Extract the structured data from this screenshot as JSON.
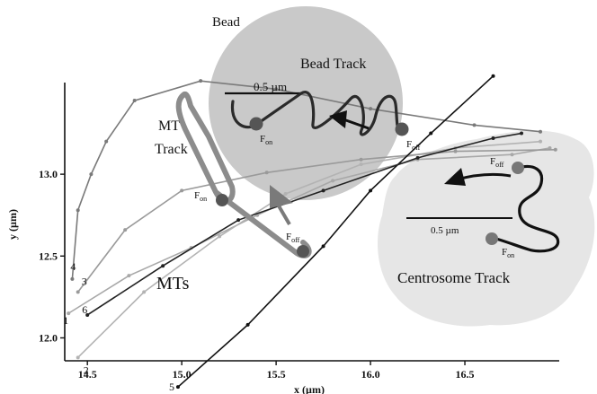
{
  "chart_data": {
    "type": "line",
    "xlabel": "x (µm)",
    "ylabel": "y (µm)",
    "xlim": [
      14.38,
      17.0
    ],
    "ylim": [
      11.86,
      13.56
    ],
    "x_ticks": [
      "14.5",
      "15.0",
      "15.5",
      "16.0",
      "16.5"
    ],
    "x_tick_values": [
      14.5,
      15.0,
      15.5,
      16.0,
      16.5
    ],
    "y_ticks": [
      "12.0",
      "12.5",
      "13.0"
    ],
    "y_tick_values": [
      12.0,
      12.5,
      13.0
    ],
    "series": [
      {
        "name": "1",
        "color": "#a8a8a8",
        "points": [
          [
            14.4,
            12.15
          ],
          [
            14.72,
            12.38
          ],
          [
            15.05,
            12.55
          ],
          [
            15.4,
            12.75
          ],
          [
            15.8,
            12.96
          ],
          [
            16.25,
            13.09
          ],
          [
            16.75,
            13.12
          ],
          [
            16.95,
            13.16
          ]
        ]
      },
      {
        "name": "2",
        "color": "#b3b3b3",
        "points": [
          [
            14.45,
            11.88
          ],
          [
            14.8,
            12.28
          ],
          [
            15.2,
            12.62
          ],
          [
            15.55,
            12.88
          ],
          [
            15.95,
            13.06
          ],
          [
            16.45,
            13.16
          ],
          [
            16.9,
            13.2
          ]
        ]
      },
      {
        "name": "3",
        "color": "#9a9a9a",
        "points": [
          [
            14.45,
            12.28
          ],
          [
            14.7,
            12.66
          ],
          [
            15.0,
            12.9
          ],
          [
            15.45,
            13.01
          ],
          [
            15.95,
            13.09
          ],
          [
            16.45,
            13.14
          ],
          [
            16.98,
            13.15
          ]
        ]
      },
      {
        "name": "4",
        "color": "#7a7a7a",
        "points": [
          [
            14.42,
            12.36
          ],
          [
            14.45,
            12.78
          ],
          [
            14.52,
            13.0
          ],
          [
            14.6,
            13.2
          ],
          [
            14.75,
            13.45
          ],
          [
            15.1,
            13.57
          ],
          [
            15.5,
            13.52
          ],
          [
            16.0,
            13.4
          ],
          [
            16.55,
            13.3
          ],
          [
            16.9,
            13.26
          ]
        ]
      },
      {
        "name": "5",
        "color": "#111111",
        "points": [
          [
            14.98,
            11.7
          ],
          [
            15.35,
            12.08
          ],
          [
            15.75,
            12.56
          ],
          [
            16.0,
            12.9
          ],
          [
            16.32,
            13.25
          ],
          [
            16.65,
            13.6
          ]
        ]
      },
      {
        "name": "6",
        "color": "#222222",
        "points": [
          [
            14.5,
            12.14
          ],
          [
            14.9,
            12.44
          ],
          [
            15.3,
            12.72
          ],
          [
            15.75,
            12.9
          ],
          [
            16.25,
            13.1
          ],
          [
            16.65,
            13.22
          ],
          [
            16.8,
            13.25
          ]
        ]
      }
    ]
  },
  "annotations": {
    "bead_title": "Bead",
    "bead_track": "Bead Track",
    "mt_track_line1": "MT",
    "mt_track_line2": "Track",
    "mts": "MTs",
    "centrosome_track": "Centrosome Track",
    "scale_bead": "0.5 µm",
    "scale_centrosome": "0.5 µm",
    "f": "F",
    "on": "on",
    "off": "off"
  }
}
